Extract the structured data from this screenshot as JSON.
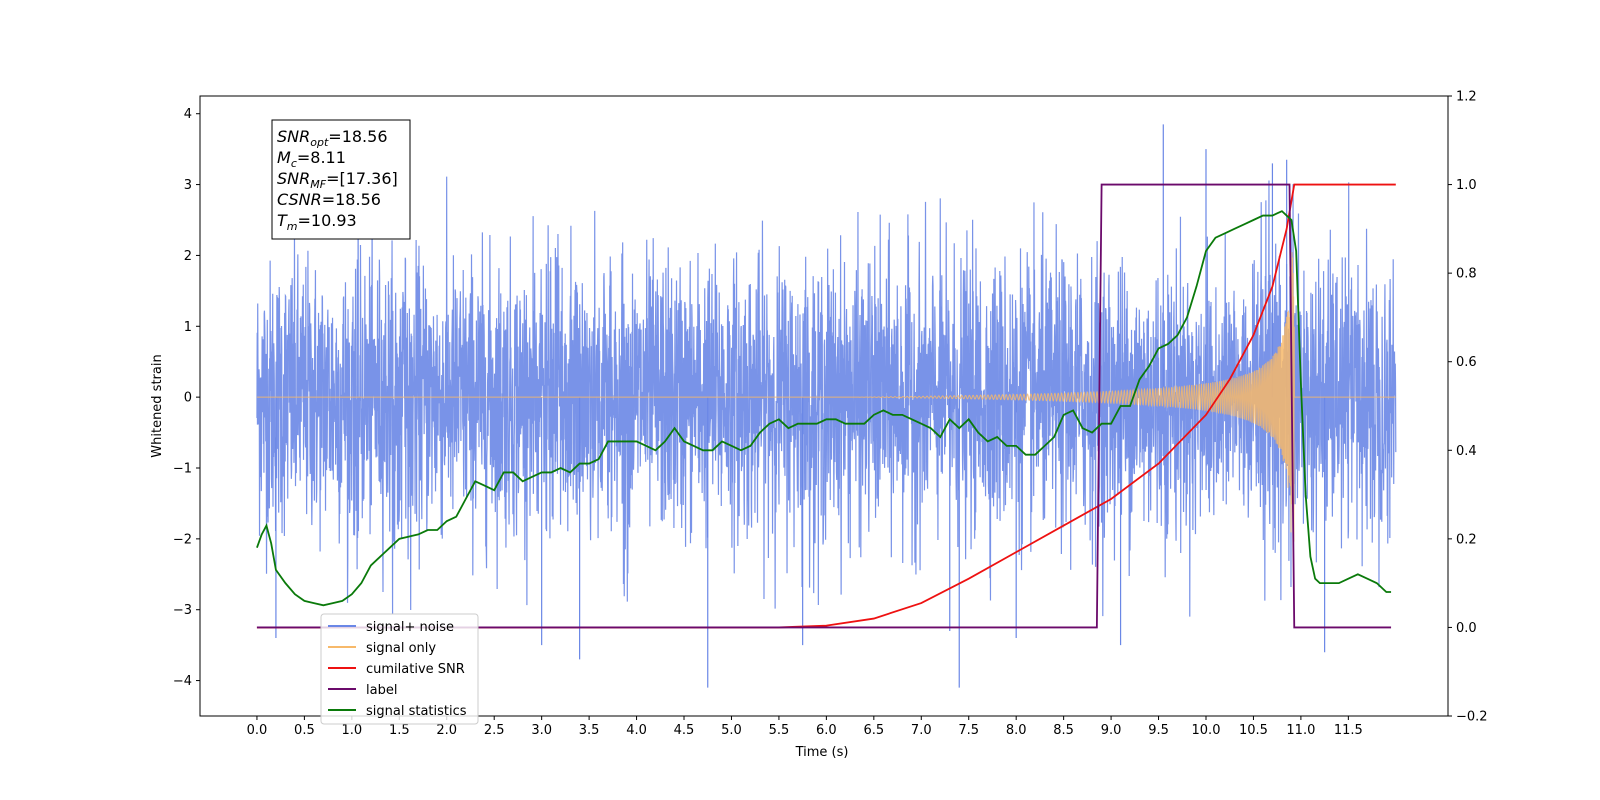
{
  "chart_data": {
    "type": "line",
    "xlabel": "Time (s)",
    "ylabel": "Whitened strain",
    "xlim": [
      -0.6,
      12.55
    ],
    "ylim_left": [
      -4.5,
      4.25
    ],
    "ylim_right": [
      -0.2,
      1.2
    ],
    "xticks": [
      0.0,
      0.5,
      1.0,
      1.5,
      2.0,
      2.5,
      3.0,
      3.5,
      4.0,
      4.5,
      5.0,
      5.5,
      6.0,
      6.5,
      7.0,
      7.5,
      8.0,
      8.5,
      9.0,
      9.5,
      10.0,
      10.5,
      11.0,
      11.5
    ],
    "xtick_labels": [
      "0.0",
      "0.5",
      "1.0",
      "1.5",
      "2.0",
      "2.5",
      "3.0",
      "3.5",
      "4.0",
      "4.5",
      "5.0",
      "5.5",
      "6.0",
      "6.5",
      "7.0",
      "7.5",
      "8.0",
      "8.5",
      "9.0",
      "9.5",
      "10.0",
      "10.5",
      "11.0",
      "11.5"
    ],
    "yticks_left": [
      -4,
      -3,
      -2,
      -1,
      0,
      1,
      2,
      3,
      4
    ],
    "ytick_labels_left": [
      "−4",
      "−3",
      "−2",
      "−1",
      "0",
      "1",
      "2",
      "3",
      "4"
    ],
    "yticks_right": [
      -0.2,
      0.0,
      0.2,
      0.4,
      0.6,
      0.8,
      1.0,
      1.2
    ],
    "ytick_labels_right": [
      "−0.2",
      "0.0",
      "0.2",
      "0.4",
      "0.6",
      "0.8",
      "1.0",
      "1.2"
    ],
    "grid": false,
    "legend_position": "bottom-left",
    "series": [
      {
        "name": "signal+ noise",
        "axis": "left",
        "color": "#6a87e6",
        "kind": "noise",
        "x_range": [
          0.0,
          12.0
        ],
        "amplitude_std": 1.0,
        "outliers": [
          [
            0.2,
            -3.4
          ],
          [
            3.0,
            -3.5
          ],
          [
            3.4,
            -3.7
          ],
          [
            4.75,
            -4.1
          ],
          [
            5.75,
            -3.5
          ],
          [
            7.3,
            -3.3
          ],
          [
            7.4,
            -4.1
          ],
          [
            8.0,
            -3.4
          ],
          [
            9.1,
            -3.5
          ],
          [
            9.55,
            3.85
          ],
          [
            10.0,
            3.5
          ],
          [
            10.7,
            3.3
          ],
          [
            10.85,
            3.35
          ],
          [
            11.25,
            -3.6
          ]
        ]
      },
      {
        "name": "signal only",
        "axis": "left",
        "color": "#f7b96a",
        "kind": "chirp",
        "start": 6.3,
        "merger": 10.93,
        "peak_amplitude": 2.2,
        "end": 12.0
      },
      {
        "name": "cumilative SNR",
        "axis": "right",
        "color": "#ee1111",
        "x": [
          0.0,
          5.5,
          6.0,
          6.5,
          7.0,
          7.5,
          8.0,
          8.5,
          9.0,
          9.5,
          10.0,
          10.25,
          10.5,
          10.7,
          10.85,
          10.93,
          12.0
        ],
        "y": [
          0.0,
          0.0,
          0.004,
          0.02,
          0.055,
          0.11,
          0.17,
          0.23,
          0.29,
          0.37,
          0.48,
          0.56,
          0.66,
          0.77,
          0.9,
          1.0,
          1.0
        ]
      },
      {
        "name": "label",
        "axis": "right",
        "color": "#6b0a6b",
        "x": [
          0.0,
          8.85,
          8.9,
          10.88,
          10.93,
          11.95
        ],
        "y": [
          0.0,
          0.0,
          1.0,
          1.0,
          0.0,
          0.0
        ]
      },
      {
        "name": "signal statistics",
        "axis": "right",
        "color": "#0a7a0a",
        "x": [
          0.0,
          0.05,
          0.1,
          0.15,
          0.2,
          0.3,
          0.4,
          0.5,
          0.6,
          0.7,
          0.8,
          0.9,
          1.0,
          1.1,
          1.2,
          1.3,
          1.4,
          1.5,
          1.6,
          1.7,
          1.8,
          1.9,
          2.0,
          2.1,
          2.2,
          2.3,
          2.4,
          2.5,
          2.6,
          2.7,
          2.8,
          2.9,
          3.0,
          3.1,
          3.2,
          3.3,
          3.4,
          3.5,
          3.6,
          3.7,
          3.8,
          3.9,
          4.0,
          4.1,
          4.2,
          4.3,
          4.4,
          4.5,
          4.6,
          4.7,
          4.8,
          4.9,
          5.0,
          5.1,
          5.2,
          5.3,
          5.4,
          5.5,
          5.6,
          5.7,
          5.8,
          5.9,
          6.0,
          6.1,
          6.2,
          6.3,
          6.4,
          6.5,
          6.6,
          6.7,
          6.8,
          6.9,
          7.0,
          7.1,
          7.2,
          7.3,
          7.4,
          7.5,
          7.6,
          7.7,
          7.8,
          7.9,
          8.0,
          8.1,
          8.2,
          8.3,
          8.4,
          8.5,
          8.6,
          8.7,
          8.8,
          8.9,
          9.0,
          9.1,
          9.2,
          9.3,
          9.4,
          9.5,
          9.6,
          9.7,
          9.8,
          9.9,
          10.0,
          10.1,
          10.2,
          10.3,
          10.4,
          10.5,
          10.6,
          10.7,
          10.75,
          10.8,
          10.85,
          10.9,
          10.95,
          11.0,
          11.05,
          11.1,
          11.15,
          11.2,
          11.3,
          11.4,
          11.5,
          11.6,
          11.7,
          11.8,
          11.9,
          11.95
        ],
        "y": [
          0.18,
          0.21,
          0.23,
          0.19,
          0.13,
          0.1,
          0.075,
          0.06,
          0.055,
          0.05,
          0.055,
          0.06,
          0.075,
          0.1,
          0.14,
          0.16,
          0.18,
          0.2,
          0.205,
          0.21,
          0.22,
          0.22,
          0.24,
          0.25,
          0.29,
          0.33,
          0.32,
          0.31,
          0.35,
          0.35,
          0.33,
          0.34,
          0.35,
          0.35,
          0.36,
          0.35,
          0.37,
          0.37,
          0.38,
          0.42,
          0.42,
          0.42,
          0.42,
          0.41,
          0.4,
          0.42,
          0.45,
          0.42,
          0.41,
          0.4,
          0.4,
          0.42,
          0.41,
          0.4,
          0.41,
          0.44,
          0.46,
          0.47,
          0.45,
          0.46,
          0.46,
          0.46,
          0.47,
          0.47,
          0.46,
          0.46,
          0.46,
          0.48,
          0.49,
          0.48,
          0.48,
          0.47,
          0.46,
          0.45,
          0.43,
          0.47,
          0.45,
          0.47,
          0.44,
          0.42,
          0.43,
          0.41,
          0.41,
          0.39,
          0.39,
          0.41,
          0.43,
          0.48,
          0.49,
          0.45,
          0.44,
          0.46,
          0.46,
          0.5,
          0.5,
          0.56,
          0.59,
          0.63,
          0.64,
          0.66,
          0.7,
          0.77,
          0.85,
          0.88,
          0.89,
          0.9,
          0.91,
          0.92,
          0.93,
          0.93,
          0.935,
          0.94,
          0.93,
          0.92,
          0.85,
          0.55,
          0.3,
          0.16,
          0.11,
          0.1,
          0.1,
          0.1,
          0.11,
          0.12,
          0.11,
          0.1,
          0.08,
          0.08
        ]
      }
    ],
    "legend_entries": [
      {
        "label": "signal+ noise",
        "color": "#6a87e6"
      },
      {
        "label": "signal only",
        "color": "#f7b96a"
      },
      {
        "label": "cumilative SNR",
        "color": "#ee1111"
      },
      {
        "label": "label",
        "color": "#6b0a6b"
      },
      {
        "label": "signal statistics",
        "color": "#0a7a0a"
      }
    ],
    "annotation": {
      "lines": [
        {
          "main": "SNR",
          "sub": "opt",
          "value": "=18.56"
        },
        {
          "main": "M",
          "sub": "c",
          "value": "=8.11"
        },
        {
          "main": "SNR",
          "sub": "MF",
          "value": "=[17.36]"
        },
        {
          "main": "CSNR",
          "sub": "",
          "value": "=18.56"
        },
        {
          "main": "T",
          "sub": "m",
          "value": "=10.93"
        }
      ]
    }
  }
}
